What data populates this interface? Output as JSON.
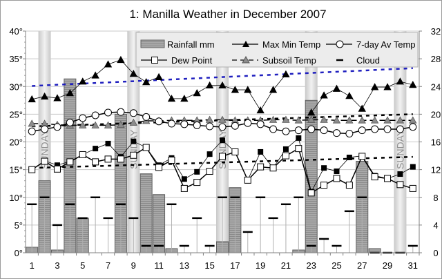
{
  "chart_data": {
    "type": "bar+line",
    "title": "1: Manilla Weather in December 2007",
    "x": [
      1,
      2,
      3,
      4,
      5,
      6,
      7,
      8,
      9,
      10,
      11,
      12,
      13,
      14,
      15,
      16,
      17,
      18,
      19,
      20,
      21,
      22,
      23,
      24,
      25,
      26,
      27,
      28,
      29,
      30,
      31
    ],
    "x_tick_labels": [
      "1",
      "3",
      "5",
      "7",
      "9",
      "11",
      "13",
      "15",
      "17",
      "19",
      "21",
      "23",
      "25",
      "27",
      "29",
      "31"
    ],
    "y_left": {
      "range": [
        0,
        40
      ],
      "tick_labels": [
        "0°",
        "5°",
        "10°",
        "15°",
        "20°",
        "25°",
        "30°",
        "35°",
        "40°"
      ]
    },
    "y_right": {
      "range": [
        0,
        32
      ],
      "tick_labels": [
        "0",
        "4",
        "8",
        "12",
        "16",
        "20",
        "24",
        "28",
        "32"
      ]
    },
    "grid": true,
    "legend_placement": "top-right",
    "sunday_label": "SUNDAY",
    "sundays": [
      2,
      9,
      16,
      23,
      30
    ],
    "series": [
      {
        "name": "Rainfall mm",
        "kind": "bar",
        "axis": "right",
        "color": "#a0a0a0",
        "values": [
          0.8,
          10.4,
          0.4,
          25.1,
          5.0,
          null,
          null,
          20.0,
          null,
          11.4,
          8.4,
          0.6,
          null,
          null,
          null,
          1.6,
          9.4,
          null,
          null,
          null,
          null,
          0.4,
          22.0,
          null,
          null,
          null,
          13.2,
          0.6,
          null,
          null,
          null
        ]
      },
      {
        "name": "Max Min Temp",
        "kind": "line-triangle",
        "axis": "left",
        "color": "#000000",
        "values": [
          27.7,
          28.2,
          27.9,
          28.8,
          30.9,
          32.0,
          34.0,
          34.8,
          32.3,
          30.8,
          31.7,
          27.8,
          27.8,
          28.8,
          30.2,
          30.2,
          29.4,
          29.4,
          25.7,
          29.4,
          32.2,
          null,
          25.3,
          28.4,
          29.6,
          28.3,
          26.0,
          29.9,
          29.9,
          30.9,
          30.3
        ]
      },
      {
        "kind": "line-filled-square",
        "axis": "left",
        "color": "#000000",
        "values": [
          15.0,
          16.6,
          15.8,
          16.5,
          17.7,
          18.8,
          19.7,
          17.3,
          20.1,
          19.0,
          15.8,
          17.1,
          13.3,
          14.6,
          17.8,
          20.3,
          18.2,
          13.1,
          18.2,
          15.3,
          18.7,
          20.7,
          11.0,
          15.3,
          14.7,
          17.2,
          17.5,
          13.9,
          13.4,
          14.2,
          15.5
        ]
      },
      {
        "name": "7-day Av Temp",
        "kind": "line-circle",
        "axis": "left",
        "color": "#000000",
        "values": [
          21.9,
          22.3,
          22.7,
          23.5,
          24.3,
          24.8,
          25.3,
          25.4,
          25.2,
          24.5,
          23.7,
          23.3,
          23.2,
          23.0,
          22.8,
          22.7,
          22.9,
          23.4,
          23.2,
          22.3,
          21.9,
          22.1,
          22.3,
          22.1,
          21.6,
          21.5,
          22.1,
          22.3,
          22.3,
          22.3,
          22.7
        ]
      },
      {
        "name": "Dew Point",
        "kind": "line-open-square",
        "axis": "left",
        "color": "#000000",
        "values": [
          15.0,
          16.5,
          15.1,
          16.4,
          17.7,
          16.4,
          16.9,
          16.9,
          17.6,
          19.0,
          15.4,
          16.7,
          11.6,
          12.7,
          14.7,
          17.4,
          18.2,
          13.1,
          15.5,
          15.3,
          17.5,
          18.8,
          10.8,
          12.2,
          13.4,
          12.2,
          17.4,
          13.7,
          13.4,
          12.3,
          11.6
        ]
      },
      {
        "name": "Subsoil Temp",
        "kind": "dashed-gray-triangle",
        "axis": "left",
        "color": "#8c8c8c",
        "values": [
          23.3,
          23.3,
          23.1,
          23.0,
          23.0,
          23.0,
          23.0,
          23.1,
          23.5,
          23.8,
          23.8,
          23.9,
          23.9,
          23.9,
          24.0,
          24.0,
          23.9,
          23.9,
          23.9,
          24.0,
          24.0,
          23.9,
          24.0,
          24.0,
          23.9,
          23.9,
          23.9,
          23.9,
          23.9,
          23.9,
          23.9
        ]
      },
      {
        "name": "Cloud",
        "kind": "dash-marker",
        "axis": "right",
        "color": "#000000",
        "values": [
          7,
          8,
          4,
          7,
          5,
          8,
          5,
          7,
          5,
          1,
          1,
          7,
          1,
          5,
          1,
          8,
          8,
          3,
          8,
          5,
          7,
          8,
          1,
          2,
          1,
          6,
          8,
          0,
          0,
          0,
          1
        ]
      }
    ],
    "trendlines": [
      {
        "axis": "left",
        "color": "#1f1fbf",
        "from": 30.1,
        "to": 33.3
      },
      {
        "axis": "left",
        "color": "#000000",
        "from": 22.8,
        "to": 25.0
      },
      {
        "axis": "left",
        "color": "#000000",
        "from": 15.3,
        "to": 17.3
      }
    ]
  }
}
